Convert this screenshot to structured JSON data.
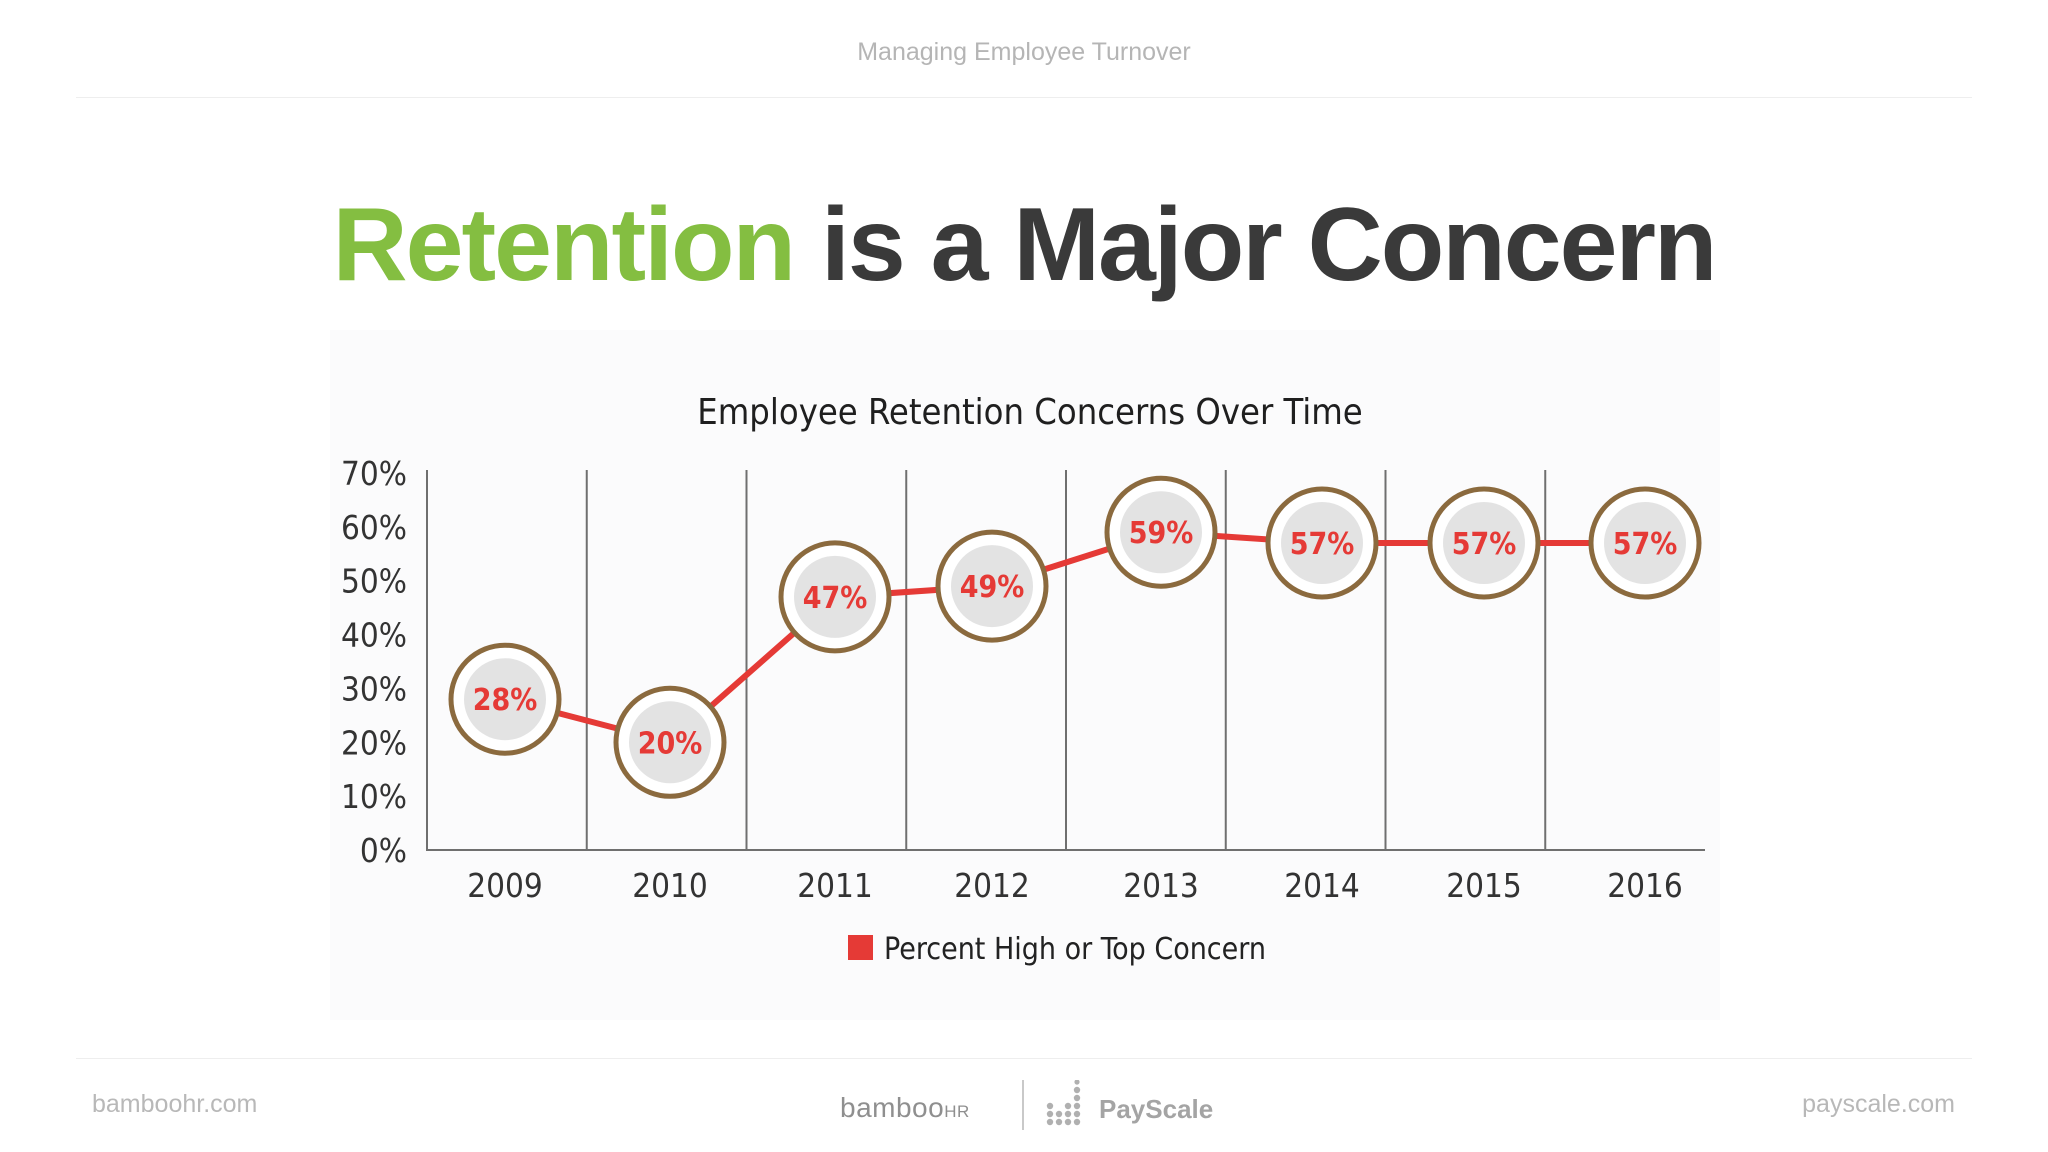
{
  "slide": {
    "header": "Managing Employee Turnover",
    "title_accent": "Retention",
    "title_rest": " is a Major Concern",
    "footer_left": "bamboohr.com",
    "footer_right": "payscale.com",
    "logo_bamboo": "bamboo",
    "logo_bamboo_suffix": "HR",
    "logo_payscale": "PayScale"
  },
  "colors": {
    "accent_green": "#84be41",
    "title_dark": "#3a3a3a",
    "series_red": "#e53a36",
    "marker_ring": "#8b6a3e",
    "marker_fill": "#e3e3e3"
  },
  "chart_data": {
    "type": "line",
    "title": "Employee Retention Concerns Over Time",
    "categories": [
      "2009",
      "2010",
      "2011",
      "2012",
      "2013",
      "2014",
      "2015",
      "2016"
    ],
    "series": [
      {
        "name": "Percent High or Top Concern",
        "values": [
          28,
          20,
          47,
          49,
          59,
          57,
          57,
          57
        ],
        "labels": [
          "28%",
          "20%",
          "47%",
          "49%",
          "59%",
          "57%",
          "57%",
          "57%"
        ]
      }
    ],
    "y_ticks": [
      "0%",
      "10%",
      "20%",
      "30%",
      "40%",
      "50%",
      "60%",
      "70%"
    ],
    "ylim": [
      0,
      70
    ],
    "xlabel": "",
    "ylabel": "",
    "grid": "vertical separators between years",
    "legend": "bottom-center"
  }
}
